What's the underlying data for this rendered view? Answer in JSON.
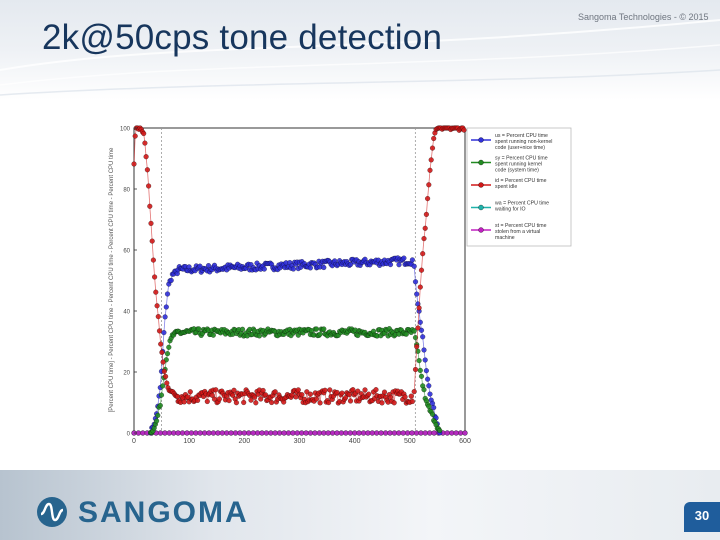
{
  "slide": {
    "title": "2k@50cps tone detection",
    "copyright": "Sangoma Technologies - © 2015",
    "brand": "SANGOMA",
    "page_number": "30"
  },
  "icons": {
    "logo": "sangoma-wave-logo-icon"
  },
  "colors": {
    "title": "#17365d",
    "brand": "#27648e",
    "page_badge": "#1f5d9c",
    "us": "#3030d8",
    "sy": "#228b22",
    "id": "#d01818",
    "wa": "#20b2aa",
    "st": "#c020c0"
  },
  "chart_data": {
    "type": "scatter",
    "title": "",
    "xlabel": "",
    "ylabel": "[Percent CPU time] - Percent CPU time - Percent CPU time - Percent CPU time - Percent CPU time",
    "xlim": [
      0,
      600
    ],
    "ylim": [
      0,
      100
    ],
    "x_ticks": [
      0,
      100,
      200,
      300,
      400,
      500,
      600
    ],
    "y_ticks": [
      0,
      20,
      40,
      60,
      80,
      100
    ],
    "vertical_lines": [
      50,
      510
    ],
    "legend_position": "top-right",
    "series": [
      {
        "name": "us = Percent CPU time spent running non-kernel code (user+nice time)",
        "key": "us",
        "ramp_up": [
          [
            30,
            0
          ],
          [
            40,
            5
          ],
          [
            48,
            15
          ],
          [
            55,
            35
          ],
          [
            62,
            48
          ],
          [
            70,
            52
          ],
          [
            80,
            53
          ]
        ],
        "plateau": {
          "x_start": 80,
          "x_end": 505,
          "y_start": 53.5,
          "y_end": 56.5,
          "noise": 1.2
        },
        "ramp_down": [
          [
            508,
            54
          ],
          [
            513,
            45
          ],
          [
            518,
            38
          ],
          [
            524,
            30
          ],
          [
            530,
            20
          ],
          [
            540,
            10
          ],
          [
            548,
            4
          ],
          [
            555,
            0
          ]
        ]
      },
      {
        "name": "sy = Percent CPU time spent running kernel code (system time)",
        "key": "sy",
        "ramp_up": [
          [
            30,
            0
          ],
          [
            40,
            3
          ],
          [
            48,
            10
          ],
          [
            55,
            20
          ],
          [
            62,
            28
          ],
          [
            70,
            32
          ],
          [
            80,
            33
          ]
        ],
        "plateau": {
          "x_start": 80,
          "x_end": 505,
          "y_start": 33,
          "y_end": 33,
          "noise": 1.2
        },
        "ramp_down": [
          [
            508,
            33
          ],
          [
            513,
            28
          ],
          [
            518,
            22
          ],
          [
            524,
            15
          ],
          [
            530,
            10
          ],
          [
            540,
            6
          ],
          [
            548,
            3
          ],
          [
            555,
            0
          ]
        ]
      },
      {
        "name": "id = Percent CPU time spent idle",
        "key": "id",
        "ramp_up": [
          [
            0,
            88
          ],
          [
            3,
            100
          ],
          [
            12,
            100
          ],
          [
            18,
            98
          ],
          [
            25,
            85
          ],
          [
            32,
            65
          ],
          [
            40,
            45
          ],
          [
            48,
            30
          ],
          [
            55,
            20
          ],
          [
            62,
            15
          ],
          [
            70,
            13
          ],
          [
            80,
            12
          ]
        ],
        "plateau": {
          "x_start": 80,
          "x_end": 505,
          "y_start": 12,
          "y_end": 12,
          "noise": 2.2
        },
        "ramp_down": [
          [
            508,
            14
          ],
          [
            513,
            30
          ],
          [
            518,
            45
          ],
          [
            524,
            60
          ],
          [
            530,
            72
          ],
          [
            536,
            85
          ],
          [
            542,
            95
          ],
          [
            548,
            100
          ],
          [
            600,
            100
          ]
        ]
      },
      {
        "name": "wa = Percent CPU time waiting for IO",
        "key": "wa",
        "ramp_up": [
          [
            0,
            0
          ],
          [
            600,
            0
          ]
        ],
        "plateau": null,
        "ramp_down": []
      },
      {
        "name": "st = Percent CPU time stolen from a virtual machine",
        "key": "st",
        "ramp_up": [
          [
            0,
            0
          ],
          [
            600,
            0
          ]
        ],
        "plateau": null,
        "ramp_down": []
      }
    ]
  }
}
